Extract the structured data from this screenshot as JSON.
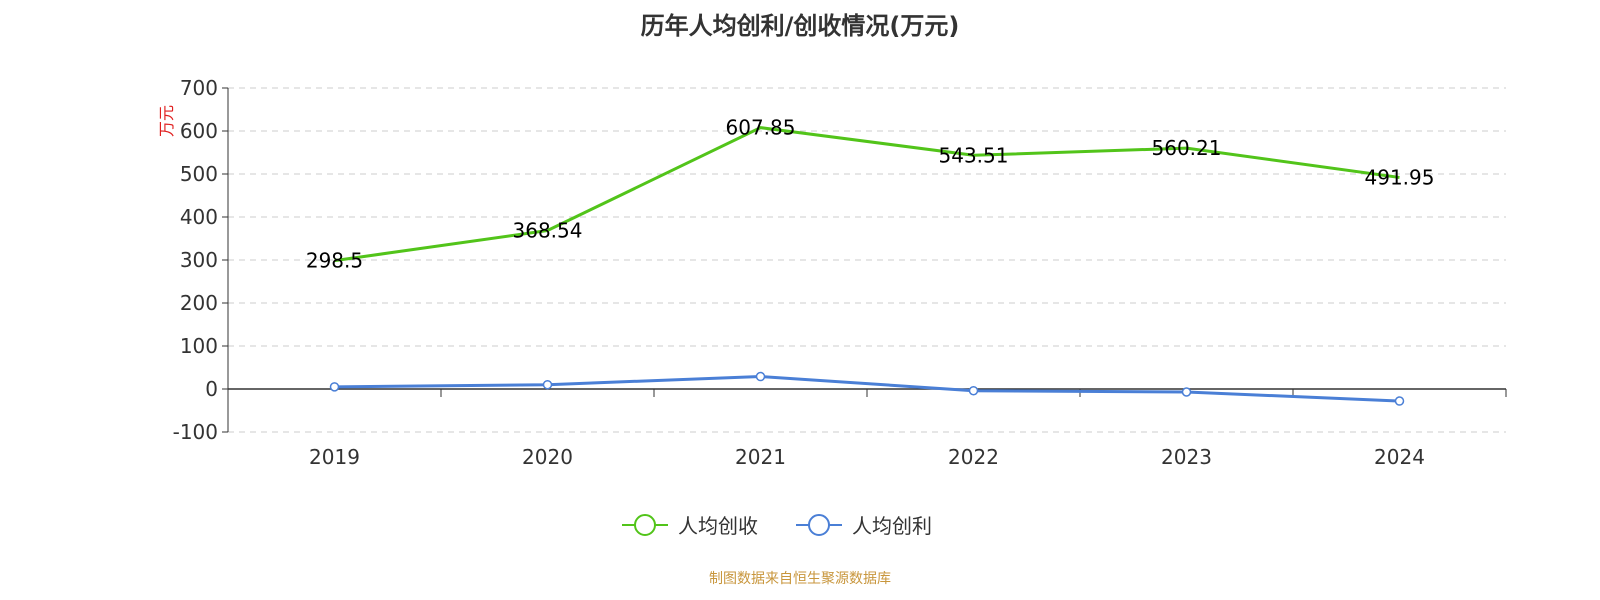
{
  "title": "历年人均创利/创收情况(万元)",
  "source": "制图数据来自恒生聚源数据库",
  "chart_data": {
    "type": "line",
    "title": "历年人均创利/创收情况(万元)",
    "ylabel": "万元",
    "xlabel": "",
    "categories": [
      "2019",
      "2020",
      "2021",
      "2022",
      "2023",
      "2024"
    ],
    "ylim": [
      -100,
      700
    ],
    "yticks": [
      -100,
      0,
      100,
      200,
      300,
      400,
      500,
      600,
      700
    ],
    "grid": true,
    "legend_position": "bottom-center",
    "series": [
      {
        "name": "人均创收",
        "color": "#52c41a",
        "values": [
          298.5,
          368.54,
          607.85,
          543.51,
          560.21,
          491.95
        ],
        "labels": [
          "298.5",
          "368.54",
          "607.85",
          "543.51",
          "560.21",
          "491.95"
        ],
        "show_markers": false
      },
      {
        "name": "人均创利",
        "color": "#4a7fd6",
        "values": [
          5,
          10,
          29,
          -4,
          -7,
          -28
        ],
        "show_markers": true
      }
    ]
  }
}
